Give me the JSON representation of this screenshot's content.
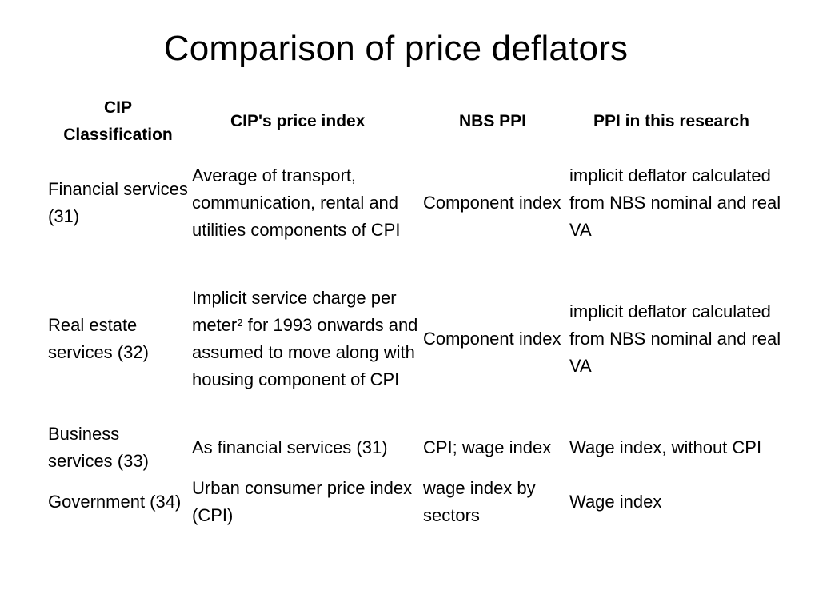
{
  "title": "Comparison of price deflators",
  "table": {
    "headers": {
      "classification": "CIP Classification",
      "cip_price_index": "CIP's price index",
      "nbs_ppi": "NBS PPI",
      "ppi_research": "PPI in this research"
    },
    "rows": [
      {
        "classification": "Financial services (31)",
        "cip_price_index": "Average of transport, communication, rental and utilities components of CPI",
        "nbs_ppi": "Component index",
        "ppi_research": "implicit deflator calculated from NBS nominal and real VA"
      },
      {
        "classification": "Real estate services (32)",
        "cip_price_index_pre": "Implicit service charge per meter",
        "cip_price_index_sup": "2",
        "cip_price_index_post": " for 1993 onwards and assumed to move along with housing component of CPI",
        "nbs_ppi": "Component index",
        "ppi_research": "implicit deflator calculated from NBS nominal and real VA"
      },
      {
        "classification": "Business services (33)",
        "cip_price_index": "As financial services (31)",
        "nbs_ppi": "CPI; wage index",
        "ppi_research": "Wage index, without CPI"
      },
      {
        "classification": "Government (34)",
        "cip_price_index": "Urban consumer price index (CPI)",
        "nbs_ppi": "wage index by sectors",
        "ppi_research": "Wage index"
      }
    ]
  }
}
